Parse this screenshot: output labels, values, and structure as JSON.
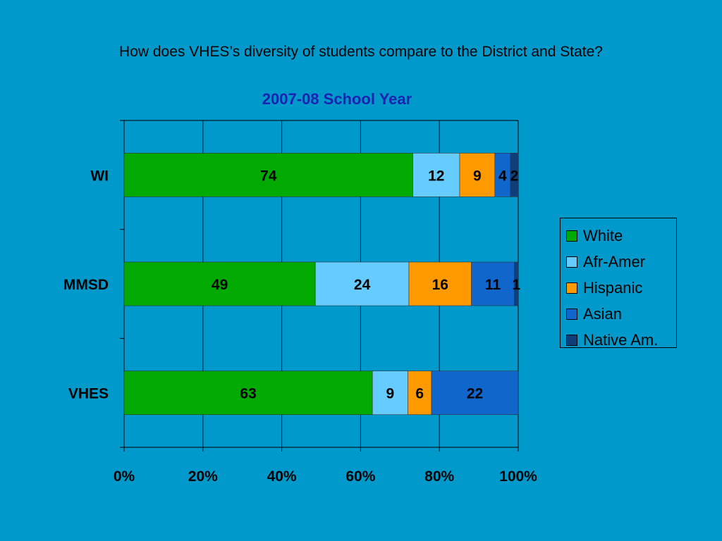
{
  "slide": {
    "title": "How does VHES’s diversity of students compare to the District and State?"
  },
  "chart_data": {
    "type": "bar",
    "orientation": "horizontal",
    "stacked": "percent",
    "title": "2007-08 School Year",
    "categories": [
      "WI",
      "MMSD",
      "VHES"
    ],
    "series": [
      {
        "name": "White",
        "color": "#00AA00",
        "values": [
          74,
          49,
          63
        ]
      },
      {
        "name": "Afr-Amer",
        "color": "#66CCFF",
        "values": [
          12,
          24,
          9
        ]
      },
      {
        "name": "Hispanic",
        "color": "#FF9900",
        "values": [
          9,
          16,
          6
        ]
      },
      {
        "name": "Asian",
        "color": "#1166CC",
        "values": [
          4,
          11,
          22
        ]
      },
      {
        "name": "Native Am.",
        "color": "#0F3F7A",
        "values": [
          2,
          1,
          0
        ]
      }
    ],
    "x_ticks": [
      "0%",
      "20%",
      "40%",
      "60%",
      "80%",
      "100%"
    ],
    "xlim": [
      0,
      100
    ],
    "grid": true,
    "legend_position": "right"
  }
}
